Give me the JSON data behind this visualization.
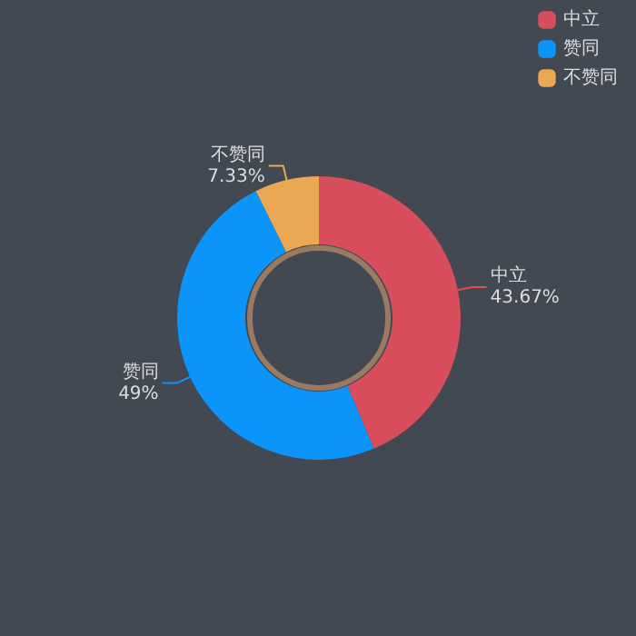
{
  "chart_data": {
    "type": "donut",
    "categories": [
      "中立",
      "赞同",
      "不赞同"
    ],
    "values": [
      43.67,
      49,
      7.33
    ],
    "colors": [
      "#d94e5d",
      "#0b95fb",
      "#eaa852"
    ],
    "value_labels": [
      "43.67%",
      "49%",
      "7.33%"
    ],
    "legend": "top right"
  }
}
